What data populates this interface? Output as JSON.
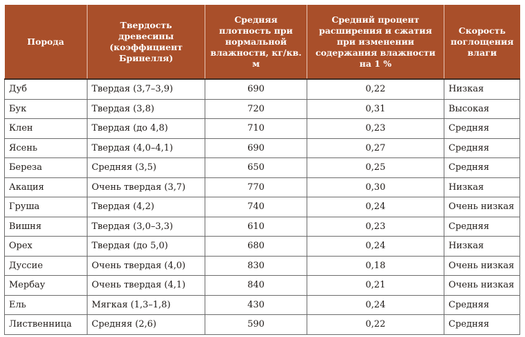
{
  "table": {
    "headers": [
      "Порода",
      "Твердость древесины (коэффициент Бринелля)",
      "Средняя плотность при нормальной влажности, кг/кв. м",
      "Средний процент расширения и сжатия при изменении содержания влажности на 1 %",
      "Скорость поглощения влаги"
    ],
    "rows": [
      [
        "Дуб",
        "Твердая (3,7–3,9)",
        "690",
        "0,22",
        "Низкая"
      ],
      [
        "Бук",
        "Твердая (3,8)",
        "720",
        "0,31",
        "Высокая"
      ],
      [
        "Клен",
        "Твердая (до 4,8)",
        "710",
        "0,23",
        "Средняя"
      ],
      [
        "Ясень",
        "Твердая (4,0–4,1)",
        "690",
        "0,27",
        "Средняя"
      ],
      [
        "Береза",
        "Средняя (3,5)",
        "650",
        "0,25",
        "Средняя"
      ],
      [
        "Акация",
        "Очень твердая (3,7)",
        "770",
        "0,30",
        "Низкая"
      ],
      [
        "Груша",
        "Твердая (4,2)",
        "740",
        "0,24",
        "Очень низкая"
      ],
      [
        "Вишня",
        "Твердая (3,0–3,3)",
        "610",
        "0,23",
        "Средняя"
      ],
      [
        "Орех",
        "Твердая (до 5,0)",
        "680",
        "0,24",
        "Низкая"
      ],
      [
        "Дуссие",
        "Очень твердая (4,0)",
        "830",
        "0,18",
        "Очень низкая"
      ],
      [
        "Мербау",
        "Очень твердая (4,1)",
        "840",
        "0,21",
        "Очень низкая"
      ],
      [
        "Ель",
        "Мягкая (1,3–1,8)",
        "430",
        "0,24",
        "Средняя"
      ],
      [
        "Лиственница",
        "Средняя (2,6)",
        "590",
        "0,22",
        "Средняя"
      ]
    ]
  },
  "colors": {
    "header_background": "#a94f2a",
    "header_text": "#ffffff",
    "grid_lines": "#6b6b6b"
  }
}
